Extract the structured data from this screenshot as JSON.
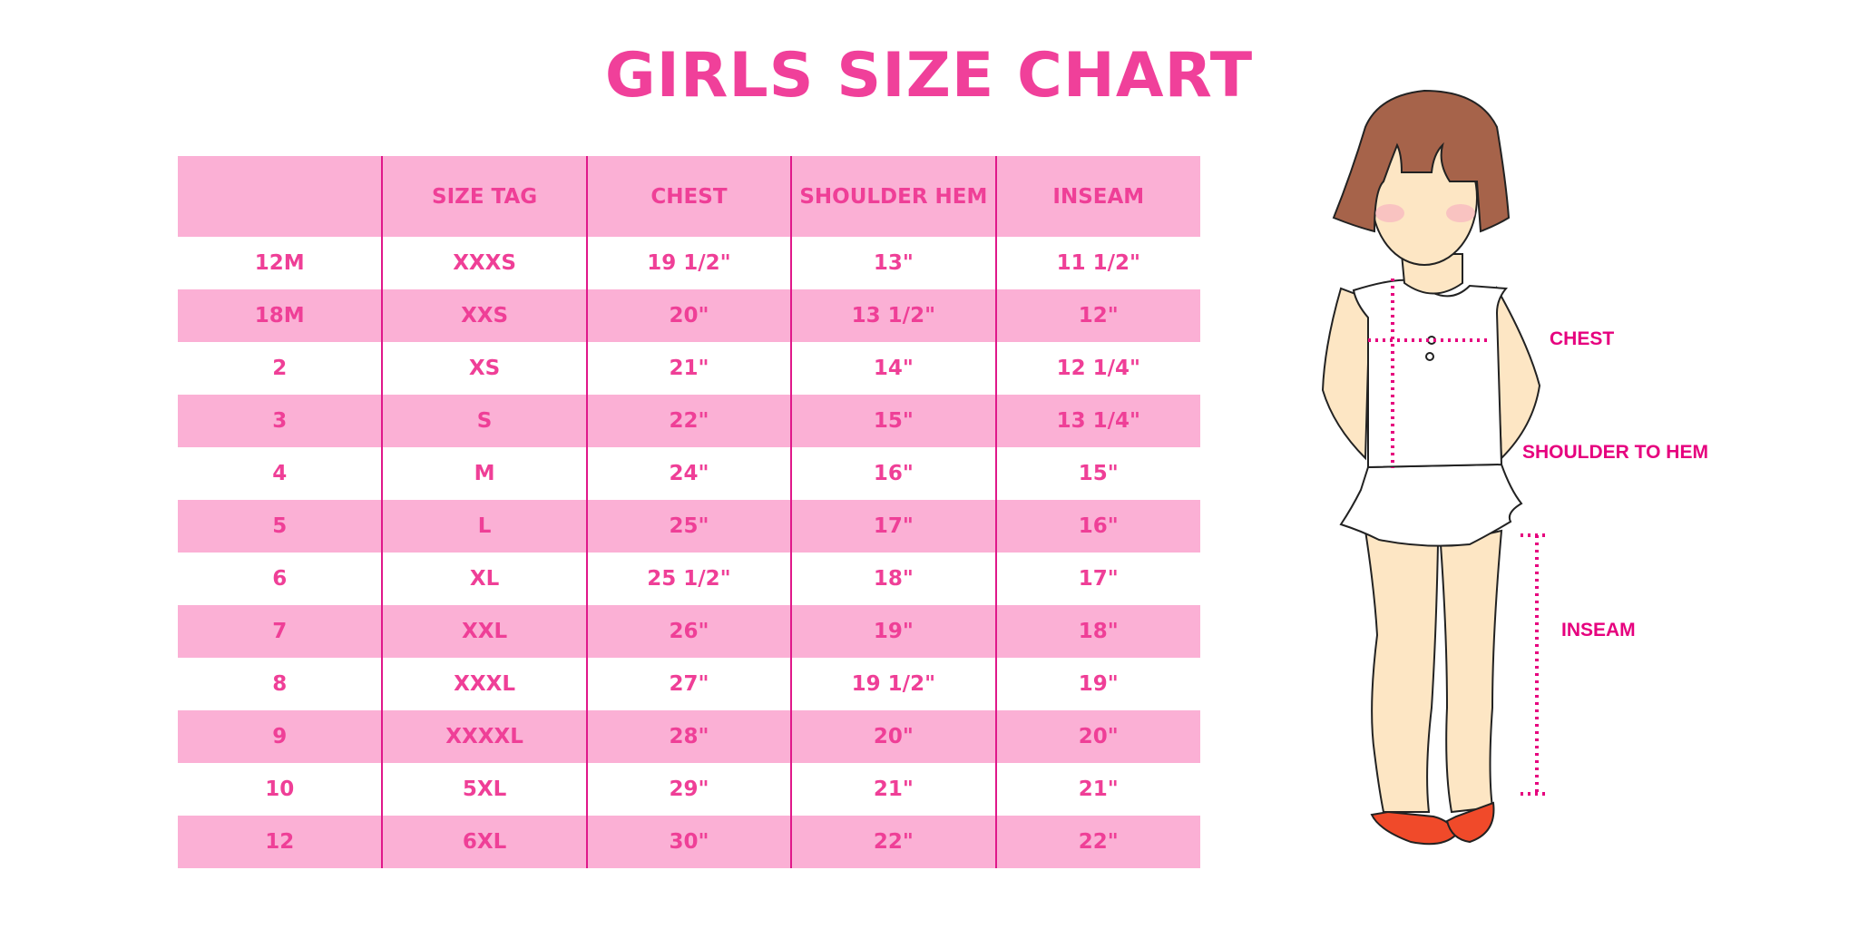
{
  "title": "GIRLS SIZE CHART",
  "table": {
    "headers": [
      "",
      "SIZE TAG",
      "CHEST",
      "SHOULDER HEM",
      "INSEAM"
    ],
    "rows": [
      [
        "12M",
        "XXXS",
        "19 1/2\"",
        "13\"",
        "11 1/2\""
      ],
      [
        "18M",
        "XXS",
        "20\"",
        "13 1/2\"",
        "12\""
      ],
      [
        "2",
        "XS",
        "21\"",
        "14\"",
        "12 1/4\""
      ],
      [
        "3",
        "S",
        "22\"",
        "15\"",
        "13 1/4\""
      ],
      [
        "4",
        "M",
        "24\"",
        "16\"",
        "15\""
      ],
      [
        "5",
        "L",
        "25\"",
        "17\"",
        "16\""
      ],
      [
        "6",
        "XL",
        "25 1/2\"",
        "18\"",
        "17\""
      ],
      [
        "7",
        "XXL",
        "26\"",
        "19\"",
        "18\""
      ],
      [
        "8",
        "XXXL",
        "27\"",
        "19 1/2\"",
        "19\""
      ],
      [
        "9",
        "XXXXL",
        "28\"",
        "20\"",
        "20\""
      ],
      [
        "10",
        "5XL",
        "29\"",
        "21\"",
        "21\""
      ],
      [
        "12",
        "6XL",
        "30\"",
        "22\"",
        "22\""
      ]
    ]
  },
  "figure": {
    "labels": {
      "chest": "CHEST",
      "shoulder": "SHOULDER TO HEM",
      "inseam": "INSEAM"
    }
  },
  "colors": {
    "accent": "#ef3f97",
    "row_fill": "#fbb0d5",
    "divider": "#e0188a",
    "measure": "#e6007e"
  }
}
